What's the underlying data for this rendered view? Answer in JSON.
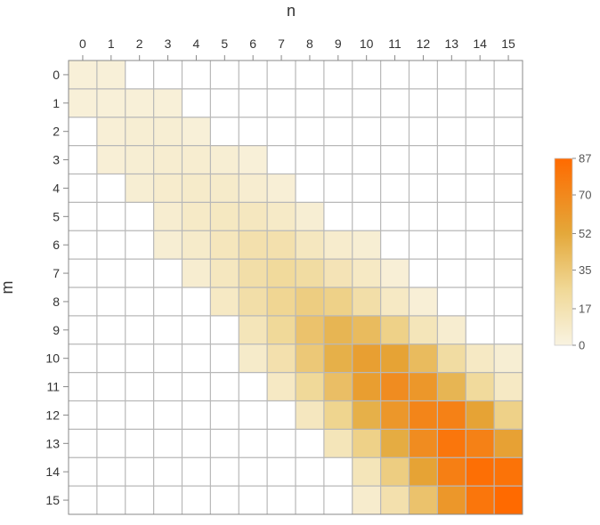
{
  "chart_data": {
    "type": "heatmap",
    "xlabel": "n",
    "ylabel": "m",
    "x_ticks": [
      "0",
      "1",
      "2",
      "3",
      "4",
      "5",
      "6",
      "7",
      "8",
      "9",
      "10",
      "11",
      "12",
      "13",
      "14",
      "15"
    ],
    "y_ticks": [
      "0",
      "1",
      "2",
      "3",
      "4",
      "5",
      "6",
      "7",
      "8",
      "9",
      "10",
      "11",
      "12",
      "13",
      "14",
      "15"
    ],
    "x_axis_position": "top",
    "y_axis_position": "left",
    "grid": true,
    "value_range": [
      0,
      87
    ],
    "colorbar": {
      "ticks": [
        "0",
        "17",
        "35",
        "52",
        "70",
        "87"
      ],
      "tick_values": [
        0,
        17,
        35,
        52,
        70,
        87
      ],
      "colors": [
        "#f9f3e1",
        "#f0d896",
        "#e4a83a",
        "#ff6a00"
      ],
      "placement": "right"
    },
    "values": [
      [
        3,
        3,
        0,
        0,
        0,
        0,
        0,
        0,
        0,
        0,
        0,
        0,
        0,
        0,
        0,
        0
      ],
      [
        3,
        3,
        3,
        3,
        0,
        0,
        0,
        0,
        0,
        0,
        0,
        0,
        0,
        0,
        0,
        0
      ],
      [
        0,
        4,
        5,
        5,
        3,
        0,
        0,
        0,
        0,
        0,
        0,
        0,
        0,
        0,
        0,
        0
      ],
      [
        0,
        4,
        5,
        6,
        6,
        5,
        3,
        0,
        0,
        0,
        0,
        0,
        0,
        0,
        0,
        0
      ],
      [
        0,
        0,
        5,
        7,
        8,
        8,
        6,
        4,
        0,
        0,
        0,
        0,
        0,
        0,
        0,
        0
      ],
      [
        0,
        0,
        0,
        6,
        9,
        11,
        12,
        9,
        5,
        0,
        0,
        0,
        0,
        0,
        0,
        0
      ],
      [
        0,
        0,
        0,
        5,
        8,
        13,
        18,
        18,
        12,
        7,
        5,
        0,
        0,
        0,
        0,
        0
      ],
      [
        0,
        0,
        0,
        0,
        6,
        12,
        20,
        24,
        22,
        15,
        10,
        4,
        0,
        0,
        0,
        0
      ],
      [
        0,
        0,
        0,
        0,
        0,
        10,
        20,
        27,
        32,
        30,
        20,
        10,
        4,
        0,
        0,
        0
      ],
      [
        0,
        0,
        0,
        0,
        0,
        0,
        14,
        25,
        38,
        45,
        42,
        30,
        14,
        6,
        0,
        0
      ],
      [
        0,
        0,
        0,
        0,
        0,
        0,
        8,
        18,
        35,
        48,
        57,
        55,
        42,
        22,
        10,
        5
      ],
      [
        0,
        0,
        0,
        0,
        0,
        0,
        0,
        10,
        25,
        40,
        58,
        68,
        62,
        45,
        24,
        10
      ],
      [
        0,
        0,
        0,
        0,
        0,
        0,
        0,
        0,
        12,
        28,
        48,
        62,
        72,
        74,
        55,
        30
      ],
      [
        0,
        0,
        0,
        0,
        0,
        0,
        0,
        0,
        0,
        14,
        30,
        50,
        68,
        80,
        74,
        56
      ],
      [
        0,
        0,
        0,
        0,
        0,
        0,
        0,
        0,
        0,
        0,
        14,
        32,
        55,
        75,
        84,
        82
      ],
      [
        0,
        0,
        0,
        0,
        0,
        0,
        0,
        0,
        0,
        0,
        7,
        18,
        38,
        62,
        80,
        87
      ]
    ]
  }
}
